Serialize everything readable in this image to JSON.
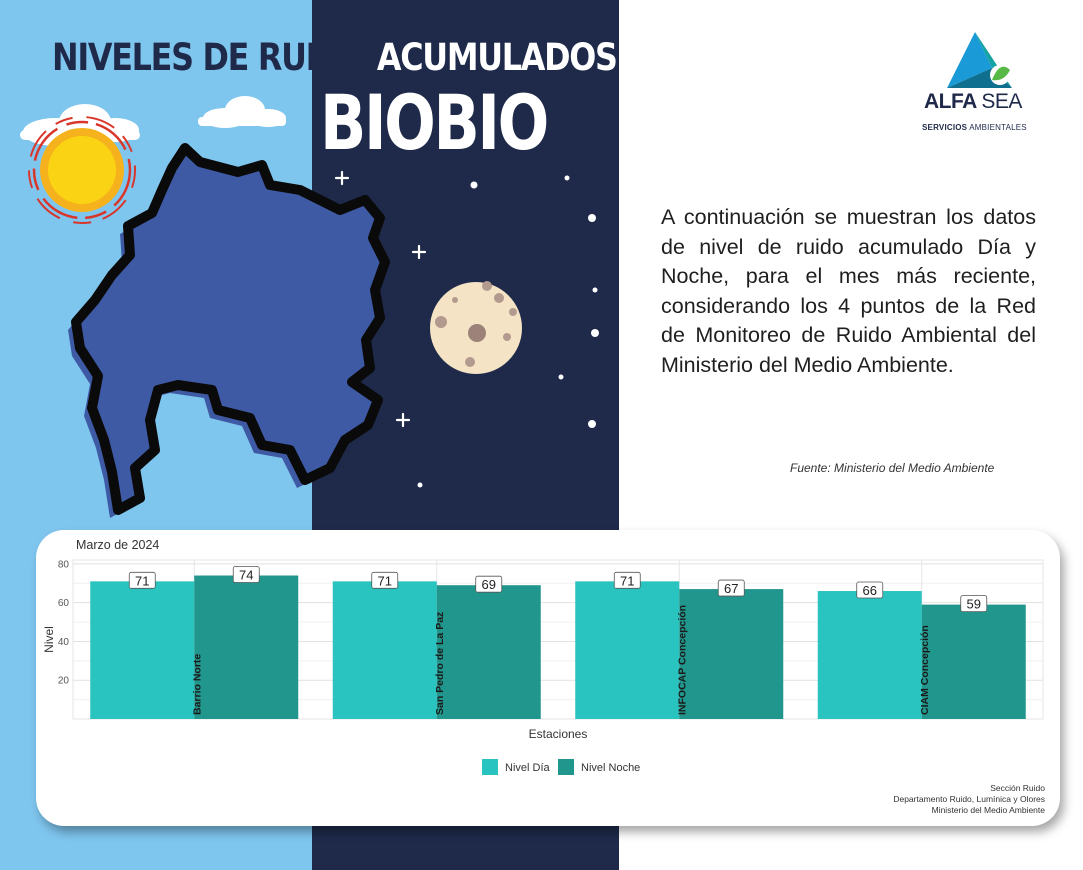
{
  "title": {
    "line1_part1": "NIVELES DE RUIDO",
    "line1_part2": "ACUMULADOS:",
    "line2": "BIOBIO"
  },
  "logo": {
    "name_bold": "ALFA",
    "name_light": "SEA",
    "subtitle_bold": "SERVICIOS",
    "subtitle_rest": "AMBIENTALES"
  },
  "description": "A continuación se muestran los datos de nivel de ruido acumulado Día y Noche, para el mes más reciente, considerando los 4 puntos de la Red de Monitoreo de Ruido Ambiental del Ministerio del Medio Ambiente.",
  "source": "Fuente: Ministerio del Medio Ambiente",
  "credits": {
    "line1": "Sección Ruido",
    "line2": "Departamento Ruido, Lumínica y Olores",
    "line3": "Ministerio del Medio Ambiente"
  },
  "colors": {
    "sky": "#7fc6ef",
    "night": "#1f2a4a",
    "region": "#3f5aa5",
    "nivel_dia": "#29c4c0",
    "nivel_noche": "#21968c"
  },
  "chart_data": {
    "type": "bar",
    "title": "Marzo de 2024",
    "xlabel": "Estaciones",
    "ylabel": "Nivel",
    "ylim": [
      0,
      82
    ],
    "yticks": [
      20,
      40,
      60,
      80
    ],
    "grid": true,
    "legend_position": "bottom",
    "categories": [
      "Barrio Norte",
      "San Pedro de La Paz",
      "INFOCAP Concepción",
      "CIAM Concepción"
    ],
    "series": [
      {
        "name": "Nivel Día",
        "color": "#29c4c0",
        "values": [
          71,
          71,
          71,
          66
        ]
      },
      {
        "name": "Nivel Noche",
        "color": "#21968c",
        "values": [
          74,
          69,
          67,
          59
        ]
      }
    ]
  }
}
